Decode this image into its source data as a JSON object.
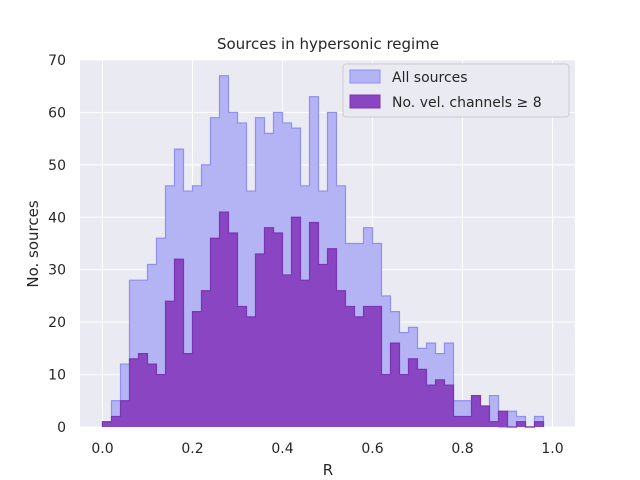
{
  "chart_data": {
    "type": "histogram-step",
    "title": "Sources in hypersonic regime",
    "xlabel": "R",
    "ylabel": "No. sources",
    "xlim": [
      -0.05,
      1.05
    ],
    "ylim": [
      0,
      70
    ],
    "xticks": [
      "0.0",
      "0.2",
      "0.4",
      "0.6",
      "0.8",
      "1.0"
    ],
    "xtick_values": [
      0,
      0.2,
      0.4,
      0.6,
      0.8,
      1.0
    ],
    "yticks": [
      "0",
      "10",
      "20",
      "30",
      "40",
      "50",
      "60",
      "70"
    ],
    "ytick_values": [
      0,
      10,
      20,
      30,
      40,
      50,
      60,
      70
    ],
    "grid": true,
    "background": "#eaeaf2",
    "legend_position": "top-right",
    "bin_start": 0.0,
    "bin_width": 0.02,
    "series": [
      {
        "name": "All sources",
        "fill": "#b4b4f4",
        "stroke": "#8f8ff0",
        "values": [
          1,
          5,
          12,
          28,
          28,
          31,
          36,
          46,
          53,
          45,
          46,
          50,
          59,
          67,
          60,
          58,
          45,
          59,
          56,
          60,
          58,
          57,
          46,
          63,
          45,
          60,
          46,
          35,
          35,
          38,
          35,
          25,
          22,
          18,
          19,
          15,
          16,
          14,
          16,
          5,
          5,
          4,
          3,
          6,
          0,
          3,
          2,
          0,
          2
        ]
      },
      {
        "name": "No. vel. channels ≥ 8",
        "fill": "#8a45c2",
        "stroke": "#7a35b2",
        "values": [
          1,
          2,
          5,
          13,
          14,
          12,
          10,
          24,
          32,
          14,
          22,
          26,
          36,
          41,
          37,
          23,
          21,
          33,
          38,
          37,
          29,
          40,
          28,
          39,
          31,
          34,
          26,
          23,
          21,
          23,
          23,
          10,
          16,
          10,
          13,
          11,
          8,
          9,
          8,
          2,
          2,
          6,
          4,
          1,
          3,
          0,
          1,
          0,
          1
        ]
      }
    ]
  }
}
